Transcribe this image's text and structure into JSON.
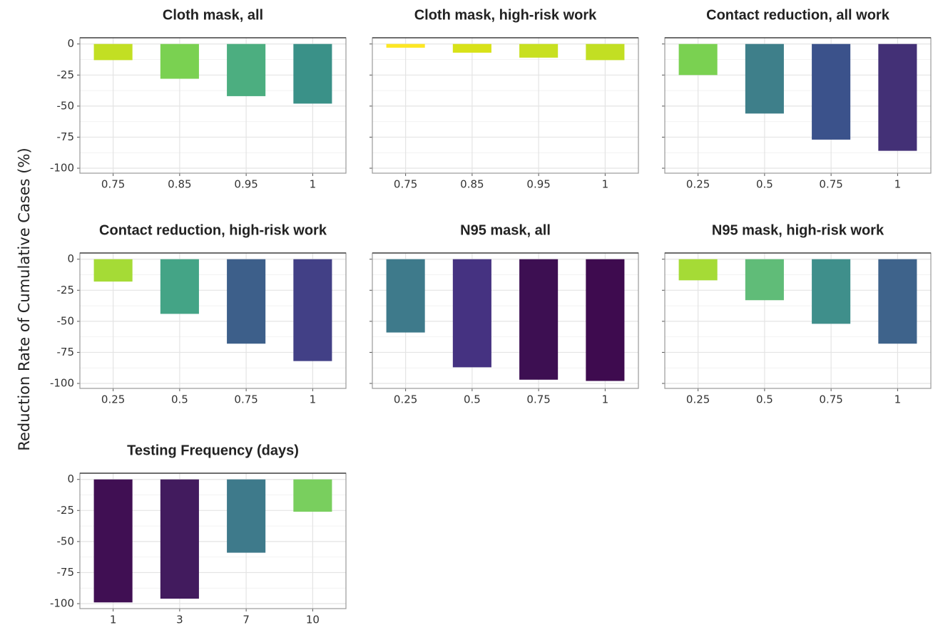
{
  "ylabel": "Reduction Rate of Cumulative Cases (%)",
  "chart_data": [
    {
      "type": "bar",
      "title": "Cloth mask, all",
      "categories": [
        "0.75",
        "0.85",
        "0.95",
        "1"
      ],
      "values": [
        -13,
        -28,
        -42,
        -48
      ],
      "colors": [
        "#c2df23",
        "#7ad151",
        "#4cae80",
        "#3a9188"
      ],
      "ylim": [
        -104,
        5
      ],
      "yticks": [
        0,
        -25,
        -50,
        -75,
        -100
      ],
      "grid": true
    },
    {
      "type": "bar",
      "title": "Cloth mask, high-risk work",
      "categories": [
        "0.75",
        "0.85",
        "0.95",
        "1"
      ],
      "values": [
        -3,
        -7,
        -11,
        -13
      ],
      "colors": [
        "#fde725",
        "#d8e219",
        "#c8e020",
        "#c2df23"
      ],
      "ylim": [
        -104,
        5
      ],
      "yticks": [
        0,
        -25,
        -50,
        -75,
        -100
      ],
      "grid": true
    },
    {
      "type": "bar",
      "title": "Contact reduction, all work",
      "categories": [
        "0.25",
        "0.5",
        "0.75",
        "1"
      ],
      "values": [
        -25,
        -56,
        -77,
        -86
      ],
      "colors": [
        "#7ad151",
        "#3e7f8a",
        "#3b528b",
        "#433076"
      ],
      "ylim": [
        -104,
        5
      ],
      "yticks": [
        0,
        -25,
        -50,
        -75,
        -100
      ],
      "grid": true
    },
    {
      "type": "bar",
      "title": "Contact reduction, high-risk work",
      "categories": [
        "0.25",
        "0.5",
        "0.75",
        "1"
      ],
      "values": [
        -18,
        -44,
        -68,
        -82
      ],
      "colors": [
        "#a5db36",
        "#44a486",
        "#3d5f8a",
        "#424086"
      ],
      "ylim": [
        -104,
        5
      ],
      "yticks": [
        0,
        -25,
        -50,
        -75,
        -100
      ],
      "grid": true
    },
    {
      "type": "bar",
      "title": "N95 mask, all",
      "categories": [
        "0.25",
        "0.5",
        "0.75",
        "1"
      ],
      "values": [
        -59,
        -87,
        -97,
        -98
      ],
      "colors": [
        "#3e7a8b",
        "#453281",
        "#3d0f52",
        "#3e0b4f"
      ],
      "ylim": [
        -104,
        5
      ],
      "yticks": [
        0,
        -25,
        -50,
        -75,
        -100
      ],
      "grid": true
    },
    {
      "type": "bar",
      "title": "N95 mask, high-risk work",
      "categories": [
        "0.25",
        "0.5",
        "0.75",
        "1"
      ],
      "values": [
        -17,
        -33,
        -52,
        -68
      ],
      "colors": [
        "#a5db36",
        "#60bc78",
        "#3f8f8b",
        "#3e638b"
      ],
      "ylim": [
        -104,
        5
      ],
      "yticks": [
        0,
        -25,
        -50,
        -75,
        -100
      ],
      "grid": true
    },
    {
      "type": "bar",
      "title": "Testing Frequency (days)",
      "categories": [
        "1",
        "3",
        "7",
        "10"
      ],
      "values": [
        -99,
        -96,
        -59,
        -26
      ],
      "colors": [
        "#400f53",
        "#421b5e",
        "#3e7a8b",
        "#79cf5e"
      ],
      "ylim": [
        -104,
        5
      ],
      "yticks": [
        0,
        -25,
        -50,
        -75,
        -100
      ],
      "grid": true
    }
  ]
}
